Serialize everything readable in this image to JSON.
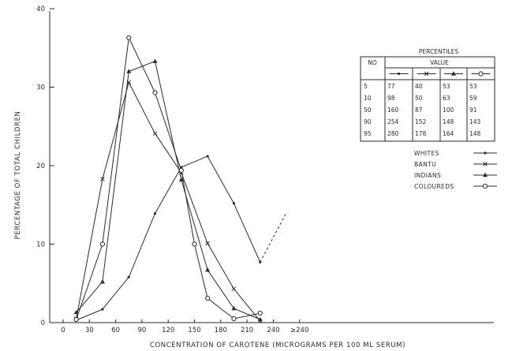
{
  "chart_data": {
    "type": "line",
    "title": "",
    "xlabel": "CONCENTRATION OF CAROTENE (MICROGRAMS PER 100 ML SERUM)",
    "ylabel": "PERCENTAGE OF TOTAL CHILDREN",
    "x_ticks": [
      "0",
      "30",
      "60",
      "90",
      "120",
      "150",
      "180",
      "210",
      "240",
      "≥240"
    ],
    "y_ticks": [
      "0",
      "10",
      "20",
      "30",
      "40"
    ],
    "ylim": [
      0,
      40
    ],
    "x_categories": [
      "0",
      "30",
      "60",
      "90",
      "120",
      "150",
      "180",
      "210",
      "240",
      "≥240"
    ],
    "series": [
      {
        "name": "WHITES",
        "marker": "dot",
        "x": [
          15,
          45,
          75,
          105,
          135,
          165,
          195,
          225
        ],
        "y": [
          0.3,
          1.7,
          5.8,
          13.9,
          19.8,
          21.2,
          15.2,
          7.7
        ],
        "extension": {
          "x": [
            225,
            255
          ],
          "y": [
            7.7,
            14
          ]
        }
      },
      {
        "name": "BANTU",
        "marker": "x",
        "x": [
          15,
          45,
          75,
          105,
          135,
          165,
          195,
          225
        ],
        "y": [
          0.5,
          18.3,
          30.6,
          24.1,
          19.1,
          10.1,
          4.3,
          0.2
        ]
      },
      {
        "name": "INDIANS",
        "marker": "filled-triangle",
        "x": [
          15,
          45,
          75,
          105,
          135,
          165,
          195,
          225
        ],
        "y": [
          1.3,
          5.2,
          32.0,
          33.3,
          18.2,
          6.7,
          1.8,
          0.4
        ]
      },
      {
        "name": "COLOUREDS",
        "marker": "open-circle",
        "x": [
          15,
          45,
          75,
          105,
          135,
          150,
          165,
          195,
          225
        ],
        "y": [
          0.4,
          10.0,
          36.3,
          29.3,
          19.4,
          10.0,
          3.1,
          0.5,
          1.2
        ]
      }
    ],
    "grid": false,
    "legend_position": "right"
  },
  "table": {
    "title": "PERCENTILES",
    "col_no": "NO",
    "col_value": "VALUE",
    "rows": [
      {
        "no": "5",
        "v": [
          "77",
          "40",
          "53",
          "53"
        ]
      },
      {
        "no": "10",
        "v": [
          "98",
          "50",
          "63",
          "59"
        ]
      },
      {
        "no": "50",
        "v": [
          "160",
          "87",
          "100",
          "91"
        ]
      },
      {
        "no": "90",
        "v": [
          "254",
          "152",
          "148",
          "143"
        ]
      },
      {
        "no": "95",
        "v": [
          "280",
          "178",
          "164",
          "148"
        ]
      }
    ]
  }
}
